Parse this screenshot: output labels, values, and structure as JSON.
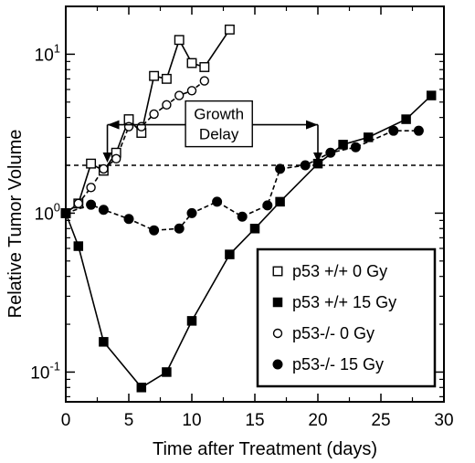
{
  "chart_data": {
    "type": "line",
    "xlabel": "Time after Treatment (days)",
    "ylabel": "Relative Tumor Volume",
    "xlim": [
      0,
      30
    ],
    "ylim": [
      0.065,
      20
    ],
    "yscale": "log",
    "xticks": [
      "0",
      "5",
      "10",
      "15",
      "20",
      "25",
      "30"
    ],
    "yticks": [
      {
        "value": 0.1,
        "base": "10",
        "exp": "-1"
      },
      {
        "value": 1,
        "base": "10",
        "exp": "0"
      },
      {
        "value": 10,
        "base": "10",
        "exp": "1"
      }
    ],
    "legend_position": "lower-right",
    "reference_line": {
      "y": 2,
      "style": "dashed"
    },
    "annotation": {
      "lines": [
        "Growth",
        "Delay"
      ],
      "x_from": 3.3,
      "x_to": 20,
      "y": 3.6
    },
    "series": [
      {
        "name": "p53 +/+ 0 Gy",
        "marker": "open-square",
        "line": "solid",
        "x": [
          0,
          1,
          2,
          3,
          4,
          5,
          6,
          7,
          8,
          9,
          10,
          11,
          13
        ],
        "y": [
          1.0,
          1.15,
          2.05,
          1.85,
          2.4,
          3.9,
          3.2,
          7.3,
          7.0,
          12.3,
          8.8,
          8.3,
          14.3
        ]
      },
      {
        "name": "p53 +/+ 15 Gy",
        "marker": "filled-square",
        "line": "solid",
        "x": [
          0,
          1,
          3,
          6,
          8,
          10,
          13,
          15,
          17,
          20,
          22,
          24,
          27,
          29
        ],
        "y": [
          1.0,
          0.62,
          0.155,
          0.08,
          0.1,
          0.21,
          0.55,
          0.8,
          1.18,
          2.05,
          2.7,
          3.0,
          3.9,
          5.5
        ]
      },
      {
        "name": "p53-/- 0 Gy",
        "marker": "open-circle",
        "line": "dashed",
        "x": [
          0,
          1,
          2,
          3,
          4,
          5,
          6,
          7,
          8,
          9,
          10,
          11
        ],
        "y": [
          1.0,
          1.15,
          1.45,
          1.9,
          2.2,
          3.5,
          3.5,
          4.2,
          4.8,
          5.5,
          5.9,
          6.8
        ]
      },
      {
        "name": "p53-/- 15 Gy",
        "marker": "filled-circle",
        "line": "dashed",
        "x": [
          0,
          2,
          3,
          5,
          7,
          9,
          10,
          12,
          14,
          16,
          17,
          19,
          21,
          23,
          26,
          28
        ],
        "y": [
          1.0,
          1.13,
          1.05,
          0.92,
          0.78,
          0.8,
          1.0,
          1.18,
          0.95,
          1.12,
          1.9,
          2.0,
          2.4,
          2.6,
          3.3,
          3.3
        ]
      }
    ]
  }
}
